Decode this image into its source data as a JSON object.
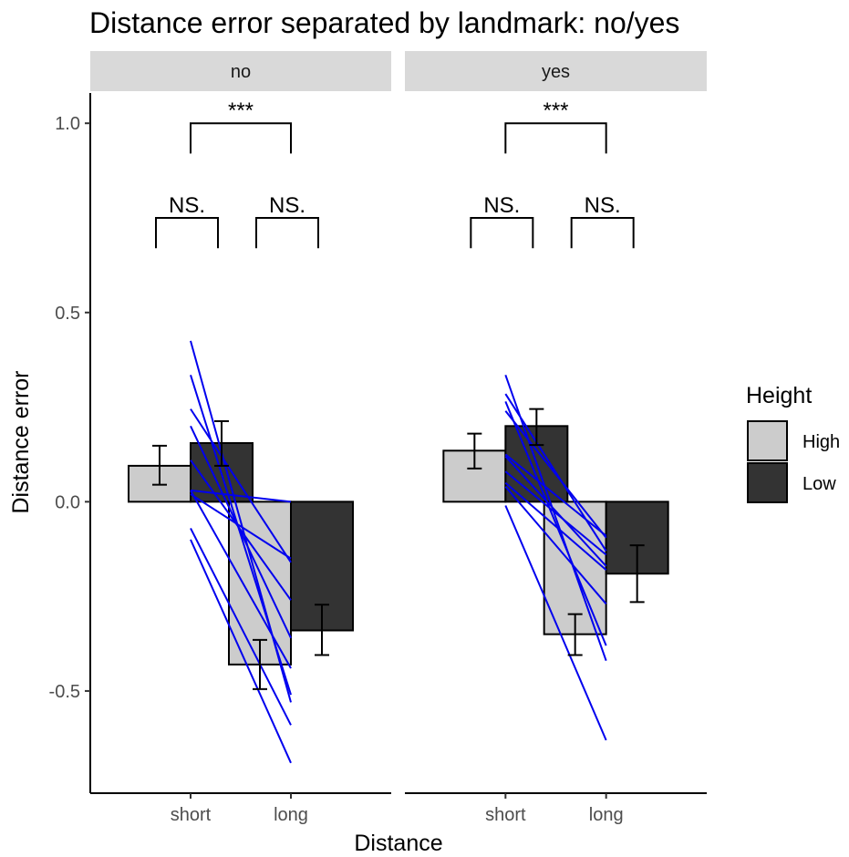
{
  "chart_data": {
    "type": "bar",
    "title": "Distance error separated by landmark: no/yes",
    "xlabel": "Distance",
    "ylabel": "Distance error",
    "ylim": [
      -0.77,
      1.08
    ],
    "yticks": [
      -0.5,
      0.0,
      0.5,
      1.0
    ],
    "ytick_labels": [
      "-0.5",
      "0.0",
      "0.5",
      "1.0"
    ],
    "categories": [
      "short",
      "long"
    ],
    "legend": {
      "title": "Height",
      "position": "right",
      "entries": [
        {
          "label": "High",
          "color": "#cccccc"
        },
        {
          "label": "Low",
          "color": "#333333"
        }
      ]
    },
    "colors": {
      "High": "#cccccc",
      "Low": "#333333",
      "lines": "#0000ee",
      "strip": "#d9d9d9"
    },
    "panels": [
      {
        "strip": "no",
        "series": [
          {
            "name": "High",
            "values": [
              0.095,
              -0.43
            ],
            "error_low": [
              0.045,
              -0.495
            ],
            "error_high": [
              0.148,
              -0.365
            ]
          },
          {
            "name": "Low",
            "values": [
              0.155,
              -0.34
            ],
            "error_low": [
              0.095,
              -0.405
            ],
            "error_high": [
              0.213,
              -0.272
            ]
          }
        ],
        "individual_lines": [
          [
            0.425,
            -0.53
          ],
          [
            0.335,
            -0.51
          ],
          [
            0.245,
            -0.16
          ],
          [
            0.2,
            -0.36
          ],
          [
            0.11,
            -0.26
          ],
          [
            0.03,
            -0.44
          ],
          [
            0.03,
            0.0
          ],
          [
            0.02,
            -0.15
          ],
          [
            -0.07,
            -0.59
          ],
          [
            -0.1,
            -0.69
          ]
        ],
        "comparisons": [
          {
            "between": "short: High vs Low",
            "label": "NS.",
            "y": 0.75
          },
          {
            "between": "long: High vs Low",
            "label": "NS.",
            "y": 0.75
          },
          {
            "between": "short vs long",
            "label": "***",
            "y": 1.0
          }
        ]
      },
      {
        "strip": "yes",
        "series": [
          {
            "name": "High",
            "values": [
              0.135,
              -0.35
            ],
            "error_low": [
              0.088,
              -0.405
            ],
            "error_high": [
              0.18,
              -0.297
            ]
          },
          {
            "name": "Low",
            "values": [
              0.2,
              -0.19
            ],
            "error_low": [
              0.15,
              -0.265
            ],
            "error_high": [
              0.245,
              -0.115
            ]
          },
          {
            "name": "",
            "values": [],
            "error_low": [],
            "error_high": []
          }
        ],
        "individual_lines": [
          [
            0.335,
            -0.42
          ],
          [
            0.285,
            -0.13
          ],
          [
            0.265,
            -0.38
          ],
          [
            0.24,
            -0.095
          ],
          [
            0.125,
            -0.09
          ],
          [
            0.12,
            -0.17
          ],
          [
            0.08,
            -0.14
          ],
          [
            0.05,
            -0.18
          ],
          [
            0.04,
            -0.27
          ],
          [
            -0.01,
            -0.63
          ]
        ],
        "comparisons": [
          {
            "between": "short: High vs Low",
            "label": "NS.",
            "y": 0.75
          },
          {
            "between": "long: High vs Low",
            "label": "NS.",
            "y": 0.75
          },
          {
            "between": "short vs long",
            "label": "***",
            "y": 1.0
          }
        ]
      }
    ]
  }
}
